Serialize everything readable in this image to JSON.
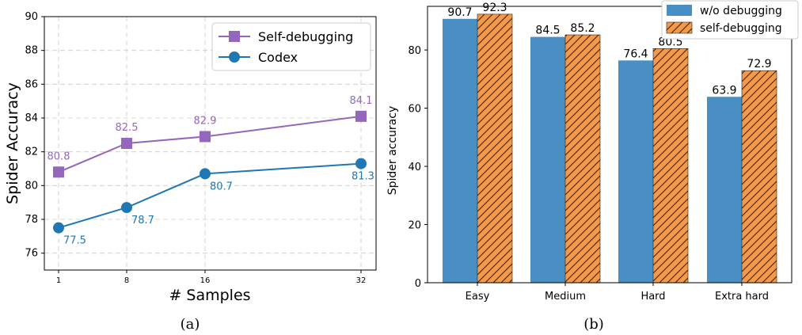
{
  "chart_data": [
    {
      "type": "line",
      "caption": "(a)",
      "xlabel": "# Samples",
      "ylabel": "Spider Accuracy",
      "x": [
        1,
        8,
        16,
        32
      ],
      "x_ticks": [
        "1",
        "8",
        "16",
        "32"
      ],
      "ylim": [
        75,
        90
      ],
      "y_ticks": [
        76,
        78,
        80,
        82,
        84,
        86,
        88,
        90
      ],
      "grid": true,
      "legend_position": "top-right",
      "series": [
        {
          "name": "Self-debugging",
          "values": [
            80.8,
            82.5,
            82.9,
            84.1
          ],
          "color": "#9467bd",
          "marker": "square"
        },
        {
          "name": "Codex",
          "values": [
            77.5,
            78.7,
            80.7,
            81.3
          ],
          "color": "#1f77b4",
          "marker": "circle"
        }
      ]
    },
    {
      "type": "bar",
      "caption": "(b)",
      "xlabel": "",
      "ylabel": "Spider accuracy",
      "categories": [
        "Easy",
        "Medium",
        "Hard",
        "Extra hard"
      ],
      "ylim": [
        0,
        95
      ],
      "y_ticks": [
        0,
        20,
        40,
        60,
        80
      ],
      "grid": false,
      "legend_position": "top-right",
      "series": [
        {
          "name": "w/o debugging",
          "values": [
            90.7,
            84.5,
            76.4,
            63.9
          ],
          "color": "#4a8fc3",
          "hatch": false
        },
        {
          "name": "self-debugging",
          "values": [
            92.3,
            85.2,
            80.5,
            72.9
          ],
          "color": "#f4994a",
          "hatch": true
        }
      ]
    }
  ]
}
